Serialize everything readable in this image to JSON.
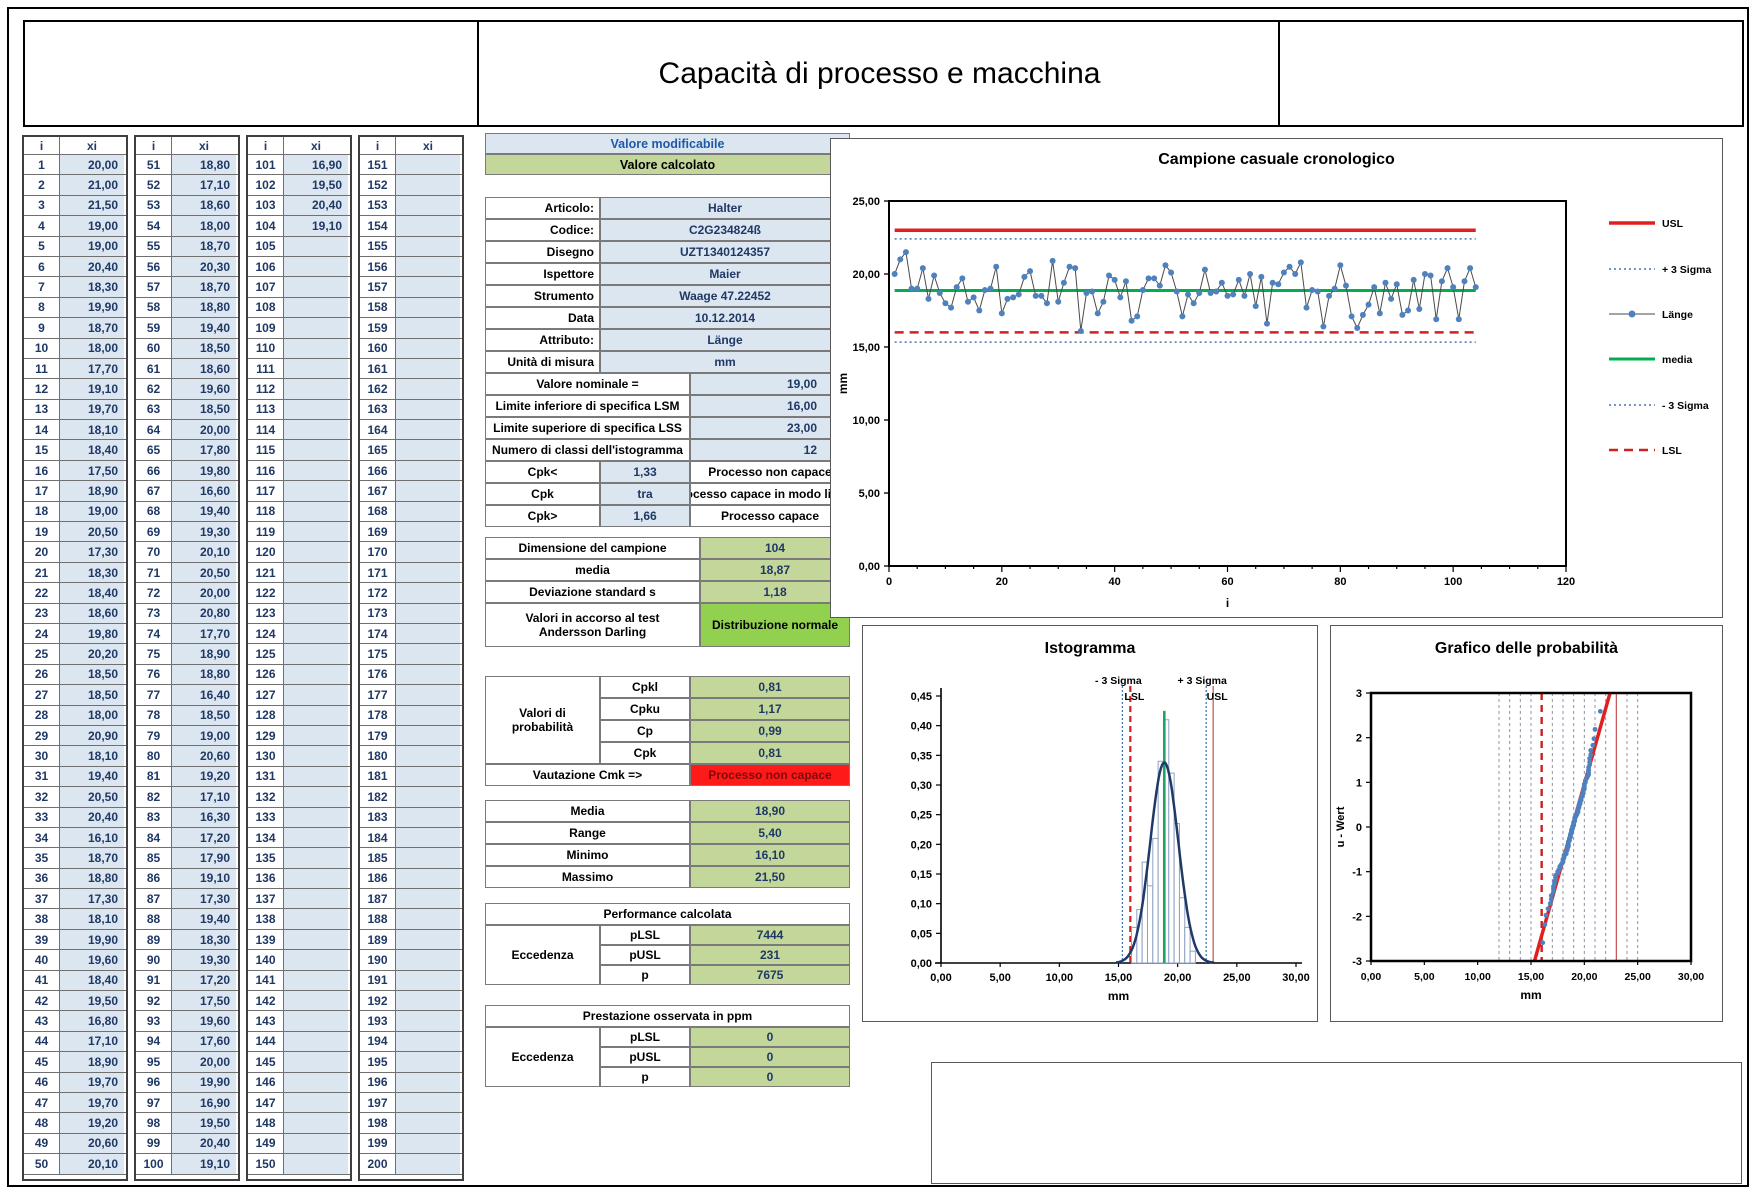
{
  "page_title": "Capacità di processo e macchina",
  "key_box": {
    "modifiable": "Valore modificabile",
    "calculated": "Valore calcolato"
  },
  "data_table": {
    "index_header": "i",
    "value_header": "xi",
    "rows_per_group": 50,
    "groups": [
      {
        "start_index": 1,
        "values": [
          "20,00",
          "21,00",
          "21,50",
          "19,00",
          "19,00",
          "20,40",
          "18,30",
          "19,90",
          "18,70",
          "18,00",
          "17,70",
          "19,10",
          "19,70",
          "18,10",
          "18,40",
          "17,50",
          "18,90",
          "19,00",
          "20,50",
          "17,30",
          "18,30",
          "18,40",
          "18,60",
          "19,80",
          "20,20",
          "18,50",
          "18,50",
          "18,00",
          "20,90",
          "18,10",
          "19,40",
          "20,50",
          "20,40",
          "16,10",
          "18,70",
          "18,80",
          "17,30",
          "18,10",
          "19,90",
          "19,60",
          "18,40",
          "19,50",
          "16,80",
          "17,10",
          "18,90",
          "19,70",
          "19,70",
          "19,20",
          "20,60",
          "20,10"
        ]
      },
      {
        "start_index": 51,
        "values": [
          "18,80",
          "17,10",
          "18,60",
          "18,00",
          "18,70",
          "20,30",
          "18,70",
          "18,80",
          "19,40",
          "18,50",
          "18,60",
          "19,60",
          "18,50",
          "20,00",
          "17,80",
          "19,80",
          "16,60",
          "19,40",
          "19,30",
          "20,10",
          "20,50",
          "20,00",
          "20,80",
          "17,70",
          "18,90",
          "18,80",
          "16,40",
          "18,50",
          "19,00",
          "20,60",
          "19,20",
          "17,10",
          "16,30",
          "17,20",
          "17,90",
          "19,10",
          "17,30",
          "19,40",
          "18,30",
          "19,30",
          "17,20",
          "17,50",
          "19,60",
          "17,60",
          "20,00",
          "19,90",
          "16,90",
          "19,50",
          "20,40",
          "19,10"
        ]
      },
      {
        "start_index": 101,
        "values": [
          "16,90",
          "19,50",
          "20,40",
          "19,10"
        ]
      },
      {
        "start_index": 151,
        "values": []
      }
    ]
  },
  "info_table": {
    "rows": [
      {
        "label": "Articolo:",
        "value": "Halter"
      },
      {
        "label": "Codice:",
        "value": "C2G234824ß"
      },
      {
        "label": "Disegno",
        "value": "UZT1340124357"
      },
      {
        "label": "Ispettore",
        "value": "Maier"
      },
      {
        "label": "Strumento",
        "value": "Waage 47.22452"
      },
      {
        "label": "Data",
        "value": "10.12.2014"
      },
      {
        "label": "Attributo:",
        "value": "Länge"
      },
      {
        "label": "Unità di misura",
        "value": "mm"
      }
    ],
    "spec_rows": [
      {
        "label": "Valore nominale =",
        "value": "19,00"
      },
      {
        "label": "Limite inferiore di specifica LSM",
        "value": "16,00"
      },
      {
        "label": "Limite superiore di specifica LSS",
        "value": "23,00"
      },
      {
        "label": "Numero di classi dell'istogramma",
        "value": "12"
      }
    ],
    "cpk_rows": [
      {
        "label": "Cpk<",
        "value": "1,33",
        "status": "Processo non capace"
      },
      {
        "label": "Cpk",
        "value": "tra",
        "status": "Processo capace in modo limitato"
      },
      {
        "label": "Cpk>",
        "value": "1,66",
        "status": "Processo capace"
      }
    ]
  },
  "stats_table": {
    "rows": [
      {
        "label": "Dimensione del campione",
        "value": "104"
      },
      {
        "label": "media",
        "value": "18,87"
      },
      {
        "label": "Deviazione standard s",
        "value": "1,18"
      }
    ],
    "test_row": {
      "label_line1": "Valori in accorso al test",
      "label_line2": "Andersson Darling",
      "value": "Distribuzione normale"
    }
  },
  "probability_table": {
    "group_label": "Valori di probabilità",
    "rows": [
      {
        "label": "Cpkl",
        "value": "0,81"
      },
      {
        "label": "Cpku",
        "value": "1,17"
      },
      {
        "label": "Cp",
        "value": "0,99"
      },
      {
        "label": "Cpk",
        "value": "0,81"
      }
    ],
    "cmk_row": {
      "label": "Vautazione Cmk =>",
      "value": "Processo non capace"
    }
  },
  "summary_table": {
    "rows": [
      {
        "label": "Media",
        "value": "18,90"
      },
      {
        "label": "Range",
        "value": "5,40"
      },
      {
        "label": "Minimo",
        "value": "16,10"
      },
      {
        "label": "Massimo",
        "value": "21,50"
      }
    ]
  },
  "performance_table": {
    "title": "Performance calcolata",
    "group_label": "Eccedenza",
    "rows": [
      {
        "label": "pLSL",
        "value": "7444"
      },
      {
        "label": "pUSL",
        "value": "231"
      },
      {
        "label": "p",
        "value": "7675"
      }
    ]
  },
  "ppm_table": {
    "title": "Prestazione osservata in ppm",
    "group_label": "Eccedenza",
    "rows": [
      {
        "label": "pLSL",
        "value": "0"
      },
      {
        "label": "pUSL",
        "value": "0"
      },
      {
        "label": "p",
        "value": "0"
      }
    ]
  },
  "colors": {
    "modifiable_bg": "#dce6f1",
    "calculated_bg": "#c4d79b",
    "normal_bg": "#92d050",
    "alert_bg": "#ff1a1a",
    "usl_red": "#e02020",
    "lsl_red": "#d02020",
    "sigma_blue": "#4575b4",
    "series_blue": "#4f81bd",
    "media_green": "#00b050",
    "hist_mean_green": "#21a366",
    "curve_navy": "#1f3a68",
    "bar_stroke": "#8fa0c0"
  },
  "chart_data": [
    {
      "type": "line",
      "title": "Campione casuale cronologico",
      "xlabel": "i",
      "ylabel": "mm",
      "xlim": [
        0,
        120
      ],
      "ylim": [
        0,
        25
      ],
      "xticks": [
        "0",
        "20",
        "40",
        "60",
        "80",
        "100",
        "120"
      ],
      "yticks": [
        "25,00",
        "20,00",
        "15,00",
        "10,00",
        "5,00",
        "0,00"
      ],
      "series_name": "Länge",
      "usl": 23,
      "lsl": 16,
      "mean": 18.87,
      "sigma": 1.18,
      "plus3sigma": 22.41,
      "minus3sigma": 15.33,
      "legend": [
        {
          "label": "USL",
          "style": "solid-red"
        },
        {
          "label": "+ 3 Sigma",
          "style": "dotted-blue"
        },
        {
          "label": "Länge",
          "style": "marker-blue"
        },
        {
          "label": "media",
          "style": "solid-green"
        },
        {
          "label": "- 3 Sigma",
          "style": "dotted-blue"
        },
        {
          "label": "LSL",
          "style": "dashed-red"
        }
      ]
    },
    {
      "type": "bar",
      "title": "Istogramma",
      "xlabel": "mm",
      "ylabel": "",
      "xlim": [
        0,
        30
      ],
      "ylim": [
        0,
        0.45
      ],
      "xticks": [
        "0,00",
        "5,00",
        "10,00",
        "15,00",
        "20,00",
        "25,00",
        "30,00"
      ],
      "yticks": [
        "0,45",
        "0,40",
        "0,35",
        "0,30",
        "0,25",
        "0,20",
        "0,15",
        "0,10",
        "0,05",
        "0,00"
      ],
      "bin_start": 16.1,
      "bin_width": 0.45,
      "densities": [
        0.06,
        0.09,
        0.17,
        0.13,
        0.21,
        0.34,
        0.41,
        0.32,
        0.235,
        0.11,
        0.06,
        0.02
      ],
      "mean": 18.87,
      "sigma": 1.18,
      "usl": 23,
      "lsl": 16,
      "plus3sigma": 22.41,
      "minus3sigma": 15.33,
      "annotations": {
        "minus_sigma": "- 3 Sigma",
        "lsl": "LSL",
        "plus_sigma": "+ 3 Sigma",
        "usl": "USL"
      }
    },
    {
      "type": "scatter",
      "title": "Grafico delle probabilità",
      "xlabel": "mm",
      "ylabel": "u - Wert",
      "xlim": [
        0,
        30
      ],
      "ylim": [
        -3,
        3
      ],
      "xticks": [
        "0,00",
        "5,00",
        "10,00",
        "15,00",
        "20,00",
        "25,00",
        "30,00"
      ],
      "yticks": [
        "3",
        "2",
        "1",
        "0",
        "-1",
        "-2",
        "-3"
      ],
      "gridlines_mm": [
        12,
        13,
        14,
        15,
        17,
        18,
        19,
        20,
        21,
        22,
        24,
        25
      ],
      "mean": 18.87,
      "sigma": 1.18,
      "usl": 23,
      "lsl": 16
    }
  ]
}
